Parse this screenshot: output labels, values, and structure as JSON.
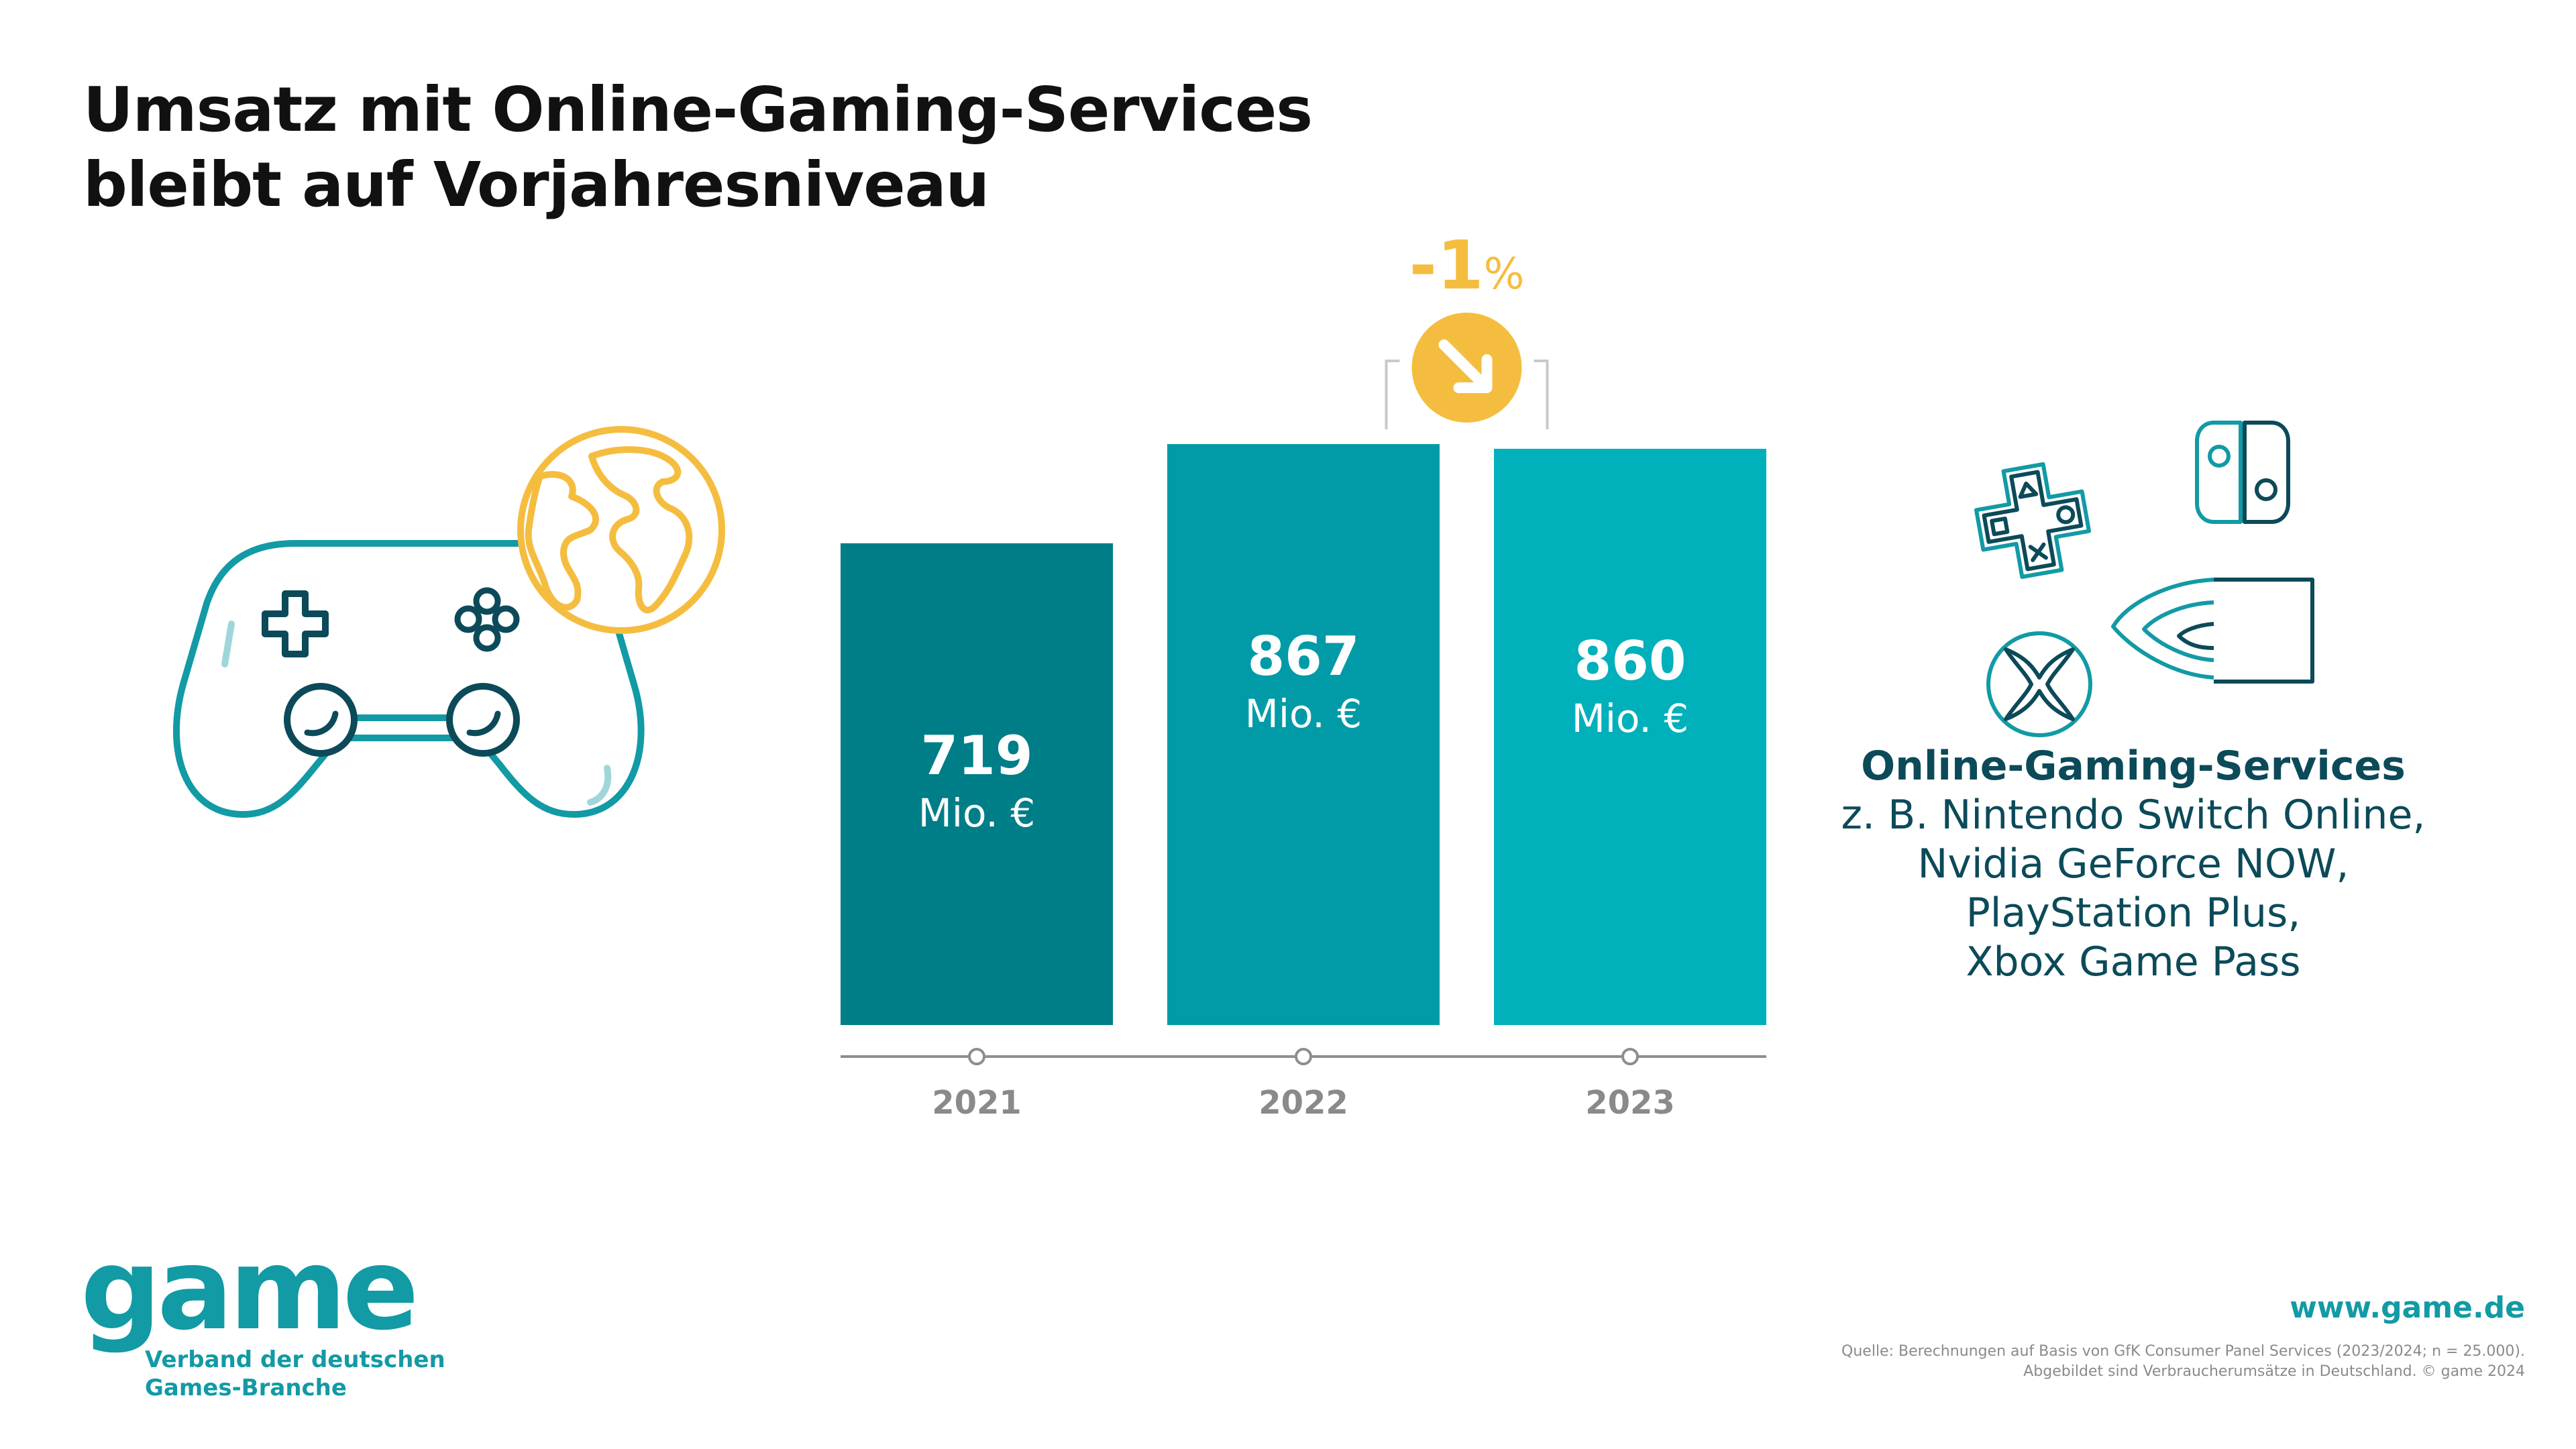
{
  "title_lines": [
    "Umsatz mit Online-Gaming-Services",
    "bleibt auf Vorjahresniveau"
  ],
  "chart_data": {
    "type": "bar",
    "categories": [
      "2021",
      "2022",
      "2023"
    ],
    "values": [
      719,
      867,
      860
    ],
    "value_unit": "Mio. €",
    "ylim": [
      0,
      867
    ],
    "grid": false,
    "bar_colors": [
      "#007e88",
      "#009ba6",
      "#00b0bb"
    ],
    "change": {
      "value": "-1",
      "unit": "%",
      "between": [
        "2022",
        "2023"
      ],
      "color": "#f5bd40"
    }
  },
  "services": {
    "title": "Online-Gaming-Services",
    "lines": [
      "z. B. Nintendo Switch Online,",
      "Nvidia GeForce NOW,",
      "PlayStation Plus,",
      "Xbox Game Pass"
    ]
  },
  "icons": [
    "gamepad-icon",
    "globe-icon",
    "playstation-icon",
    "nintendo-switch-icon",
    "xbox-icon",
    "nvidia-icon",
    "arrow-down-right-icon"
  ],
  "colors": {
    "accent": "#129aa5",
    "accent_dark": "#0c4a59",
    "yellow": "#f5bd40",
    "axis": "#8e8e8e"
  },
  "logo": {
    "word": "game",
    "subtitle_lines": [
      "Verband der deutschen",
      "Games-Branche"
    ]
  },
  "footer": {
    "url": "www.game.de",
    "source_lines": [
      "Quelle: Berechnungen auf Basis von GfK Consumer Panel Services (2023/2024; n = 25.000).",
      "Abgebildet sind Verbraucherumsätze in Deutschland. © game 2024"
    ]
  }
}
